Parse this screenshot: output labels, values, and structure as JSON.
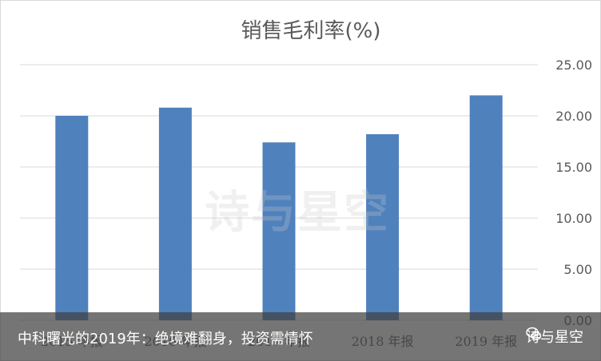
{
  "chart_data": {
    "type": "bar",
    "title": "销售毛利率(%)",
    "categories": [
      "2015 年报",
      "2016 年报",
      "2017 年报",
      "2018 年报",
      "2019 年报"
    ],
    "values": [
      20.0,
      20.8,
      17.4,
      18.2,
      22.0
    ],
    "ylim": [
      0,
      25
    ],
    "yticks": [
      "0.00",
      "5.00",
      "10.00",
      "15.00",
      "20.00",
      "25.00"
    ],
    "y_axis_side": "right",
    "grid": true,
    "bar_color": "#4f81bd"
  },
  "overlay": {
    "watermark": "诗与星空",
    "caption": "中科曙光的2019年：绝境难翻身，投资需情怀",
    "brand": "诗与星空",
    "brand_icon": "wechat-icon",
    "bar_color": "#404040"
  }
}
